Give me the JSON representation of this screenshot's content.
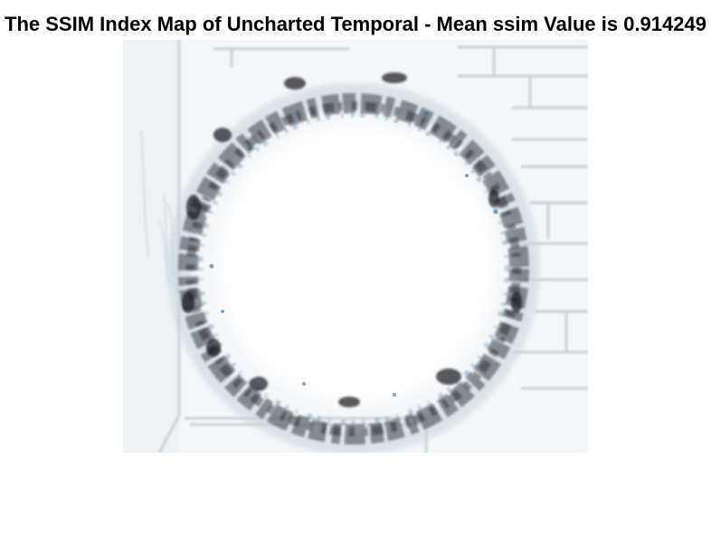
{
  "figure": {
    "title": "The SSIM Index Map of Uncharted Temporal - Mean ssim Value is 0.914249"
  },
  "map": {
    "content": "ssim-index-map",
    "background_color": "#f4f7f9",
    "ring_dark_color": "#1a1a22",
    "ring_blue_color": "#2e6f9e",
    "line_color": "#c8ced3"
  }
}
